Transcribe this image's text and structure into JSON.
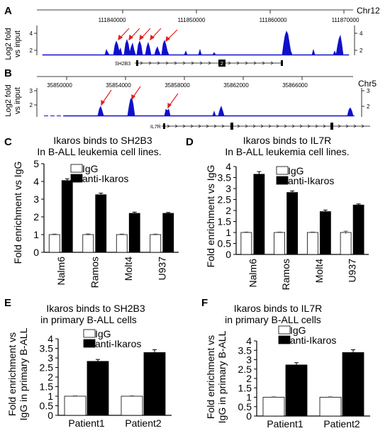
{
  "panels": {
    "A": {
      "letter": "A",
      "chrom": "Chr12",
      "ylabel_1": "Log2 fold",
      "ylabel_2": "vs input",
      "gene": "SH2B3",
      "exon_label": "2",
      "coords": [
        "111840000",
        "111850000",
        "111860000",
        "111870000"
      ],
      "ytick_left": [
        "4",
        "2"
      ],
      "ytick_right": [
        "4",
        "2"
      ],
      "color": "#1010cc",
      "arrow_color": "#e02020"
    },
    "B": {
      "letter": "B",
      "chrom": "Chr5",
      "ylabel_1": "Log2 fold",
      "ylabel_2": "vs input",
      "gene": "IL7R",
      "coords": [
        "35850000",
        "35854000",
        "35858000",
        "35862000",
        "35866000"
      ],
      "ytick_left": [
        "3",
        "2"
      ],
      "ytick_right": [
        "3",
        "2"
      ],
      "color": "#1010cc",
      "arrow_color": "#e02020"
    }
  },
  "chart_data": [
    {
      "panel": "C",
      "type": "bar",
      "title_line1": "Ikaros binds to SH2B3",
      "title_line2": "In B-ALL leukemia cell lines.",
      "ylabel": "Fold enrichment vs IgG",
      "categories": [
        "Nalm6",
        "Ramos",
        "Molt4",
        "U937"
      ],
      "series": [
        {
          "name": "IgG",
          "values": [
            1.0,
            1.0,
            1.0,
            1.0
          ],
          "errors": [
            0.03,
            0.04,
            0.03,
            0.03
          ],
          "fill": "#ffffff"
        },
        {
          "name": "anti-Ikaros",
          "values": [
            4.05,
            3.25,
            2.2,
            2.2
          ],
          "errors": [
            0.1,
            0.09,
            0.07,
            0.05
          ],
          "fill": "#000000"
        }
      ],
      "ylim": [
        0,
        5
      ],
      "yticks": [
        0,
        1,
        2,
        3,
        4,
        5
      ]
    },
    {
      "panel": "D",
      "type": "bar",
      "title_line1": "Ikaros binds to IL7R",
      "title_line2": "In B-ALL leukemia cell lines.",
      "ylabel": "Fold enrichment vs IgG",
      "categories": [
        "Nalm6",
        "Ramos",
        "Molt4",
        "U937"
      ],
      "series": [
        {
          "name": "IgG",
          "values": [
            1.0,
            1.0,
            1.0,
            1.0
          ],
          "errors": [
            0.02,
            0.02,
            0.02,
            0.06
          ],
          "fill": "#ffffff"
        },
        {
          "name": "anti-Ikaros",
          "values": [
            3.65,
            2.82,
            1.95,
            2.25
          ],
          "errors": [
            0.12,
            0.07,
            0.07,
            0.05
          ],
          "fill": "#000000"
        }
      ],
      "ylim": [
        0,
        4
      ],
      "yticks": [
        0,
        0.5,
        1,
        1.5,
        2,
        2.5,
        3,
        3.5,
        4
      ]
    },
    {
      "panel": "E",
      "type": "bar",
      "title_line1": "Ikaros  binds to SH2B3",
      "title_line2": "in primary B-ALL cells",
      "ylabel_1": "Fold enrichment vs",
      "ylabel_2": "IgG in primary B-ALL",
      "categories": [
        "Patient1",
        "Patient2"
      ],
      "series": [
        {
          "name": "IgG",
          "values": [
            1.0,
            1.0
          ],
          "errors": [
            0.02,
            0.02
          ],
          "fill": "#ffffff"
        },
        {
          "name": "anti-Ikaros",
          "values": [
            2.82,
            3.28
          ],
          "errors": [
            0.1,
            0.15
          ],
          "fill": "#000000"
        }
      ],
      "ylim": [
        0,
        4
      ],
      "yticks": [
        0,
        0.5,
        1,
        1.5,
        2,
        2.5,
        3,
        3.5,
        4
      ]
    },
    {
      "panel": "F",
      "type": "bar",
      "title_line1": "Ikaros  binds to IL7R",
      "title_line2": "in primary B-ALL cells",
      "ylabel_1": "Fold enrichment vs",
      "ylabel_2": "IgG in primary B-ALL",
      "categories": [
        "Patient1",
        "Patient2"
      ],
      "series": [
        {
          "name": "IgG",
          "values": [
            1.0,
            1.0
          ],
          "errors": [
            0.02,
            0.02
          ],
          "fill": "#ffffff"
        },
        {
          "name": "anti-Ikaros",
          "values": [
            2.72,
            3.38
          ],
          "errors": [
            0.12,
            0.15
          ],
          "fill": "#000000"
        }
      ],
      "ylim": [
        0,
        4
      ],
      "yticks": [
        0,
        0.5,
        1,
        1.5,
        2,
        2.5,
        3,
        3.5,
        4
      ]
    }
  ]
}
